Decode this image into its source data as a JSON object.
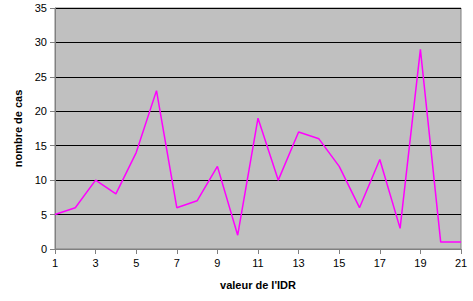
{
  "chart_data": {
    "type": "line",
    "x_label": "valeur de l'IDR",
    "y_label": "nombre de cas",
    "x": [
      1,
      2,
      3,
      4,
      5,
      6,
      7,
      8,
      9,
      10,
      11,
      12,
      13,
      14,
      15,
      16,
      17,
      18,
      19,
      20,
      21
    ],
    "values": [
      5,
      6,
      10,
      8,
      14,
      23,
      6,
      7,
      12,
      2,
      19,
      10,
      17,
      16,
      12,
      6,
      13,
      3,
      29,
      1,
      1
    ],
    "color": "#ff00ff",
    "xlim": [
      1,
      21
    ],
    "xticks": [
      1,
      3,
      5,
      7,
      9,
      11,
      13,
      15,
      17,
      19,
      21
    ],
    "ylim": [
      0,
      35
    ],
    "yticks": [
      0,
      5,
      10,
      15,
      20,
      25,
      30,
      35
    ],
    "grid": true
  }
}
